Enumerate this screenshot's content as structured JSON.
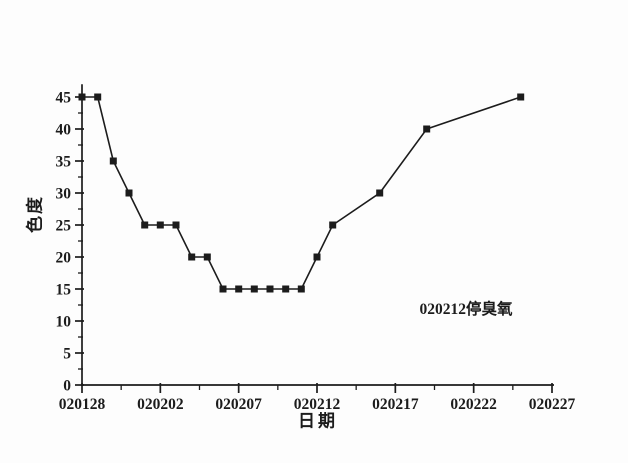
{
  "page": {
    "background": "#fdfdfd",
    "ink_color": "#1c1c1c"
  },
  "chart_data": {
    "type": "line",
    "title": "",
    "xlabel": "日期",
    "ylabel": "色度",
    "annotation": "020212停臭氧",
    "grid": "off",
    "legend": "none",
    "marker_style": "filled-square",
    "line_color": "#1c1c1c",
    "x_tick_labels": [
      "020128",
      "020202",
      "020207",
      "020212",
      "020217",
      "020222",
      "020227"
    ],
    "x_major_interval_days": 5,
    "x_minor_interval_days": 2.5,
    "xlim_days": [
      0,
      30
    ],
    "y_ticks": [
      0,
      5,
      10,
      15,
      20,
      25,
      30,
      35,
      40,
      45
    ],
    "y_minor_interval": 2.5,
    "ylim": [
      0,
      47
    ],
    "series": [
      {
        "name": "色度",
        "points": [
          {
            "date": "020128",
            "day": 0,
            "value": 45
          },
          {
            "date": "020129",
            "day": 1,
            "value": 45
          },
          {
            "date": "020130",
            "day": 2,
            "value": 35
          },
          {
            "date": "020131",
            "day": 3,
            "value": 30
          },
          {
            "date": "020201",
            "day": 4,
            "value": 25
          },
          {
            "date": "020202",
            "day": 5,
            "value": 25
          },
          {
            "date": "020203",
            "day": 6,
            "value": 25
          },
          {
            "date": "020204",
            "day": 7,
            "value": 20
          },
          {
            "date": "020205",
            "day": 8,
            "value": 20
          },
          {
            "date": "020206",
            "day": 9,
            "value": 15
          },
          {
            "date": "020207",
            "day": 10,
            "value": 15
          },
          {
            "date": "020208",
            "day": 11,
            "value": 15
          },
          {
            "date": "020209",
            "day": 12,
            "value": 15
          },
          {
            "date": "020210",
            "day": 13,
            "value": 15
          },
          {
            "date": "020211",
            "day": 14,
            "value": 15
          },
          {
            "date": "020212",
            "day": 15,
            "value": 20
          },
          {
            "date": "020213",
            "day": 16,
            "value": 25
          },
          {
            "date": "020216",
            "day": 19,
            "value": 30
          },
          {
            "date": "020219",
            "day": 22,
            "value": 40
          },
          {
            "date": "020225",
            "day": 28,
            "value": 45
          }
        ]
      }
    ]
  }
}
